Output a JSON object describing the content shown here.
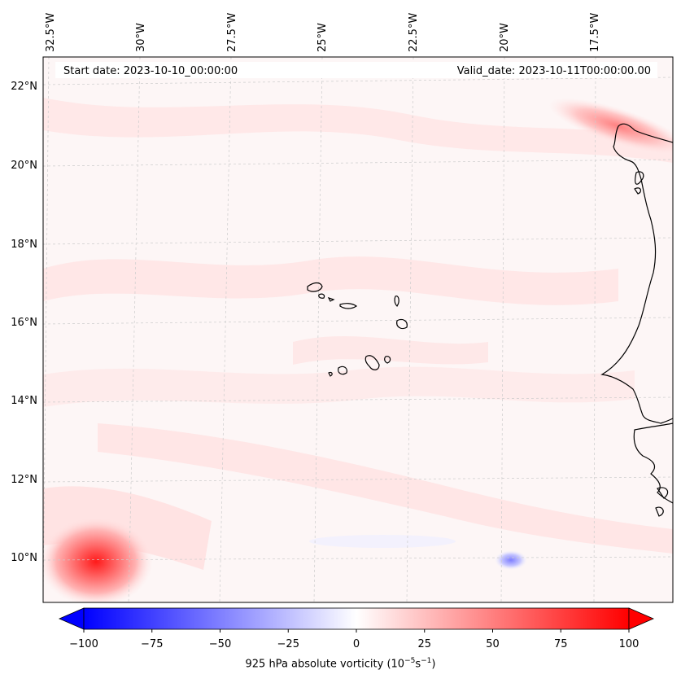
{
  "header": {
    "start_date": "Start date: 2023-10-10_00:00:00",
    "valid_date": "Valid_date: 2023-10-11T00:00:00.00"
  },
  "map": {
    "lon_labels": [
      "32.5°W",
      "30°W",
      "27.5°W",
      "25°W",
      "22.5°W",
      "20°W",
      "17.5°W"
    ],
    "lat_labels": [
      "22°N",
      "20°N",
      "18°N",
      "16°N",
      "14°N",
      "12°N",
      "10°N"
    ],
    "colors": {
      "coast": "#000000",
      "grid": "#cccccc",
      "background": "#fdf6f6"
    }
  },
  "colorbar": {
    "ticks": [
      "−100",
      "−75",
      "−50",
      "−25",
      "0",
      "25",
      "50",
      "75",
      "100"
    ],
    "label_prefix": "925 hPa absolute vorticity (10",
    "label_exp1": "−5",
    "label_mid": "s",
    "label_exp2": "−1",
    "label_suffix": ")",
    "min_color": "#0000ff",
    "mid_color": "#ffffff",
    "max_color": "#ff0000"
  }
}
